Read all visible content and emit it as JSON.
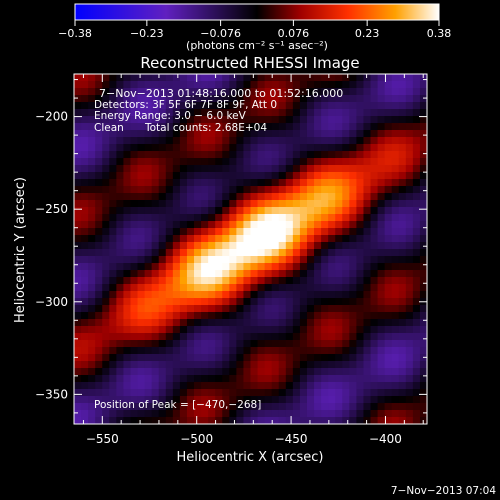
{
  "chart_data": {
    "type": "heatmap",
    "title": "Reconstructed RHESSI Image",
    "xlabel": "Heliocentric X (arcsec)",
    "ylabel": "Heliocentric Y (arcsec)",
    "xlim": [
      -565,
      -378
    ],
    "ylim": [
      -366,
      -177
    ],
    "x_ticks": [
      -550,
      -500,
      -450,
      -400
    ],
    "y_ticks": [
      -350,
      -300,
      -250,
      -200
    ],
    "x_tick_labels": [
      "−550",
      "−500",
      "−450",
      "−400"
    ],
    "y_tick_labels": [
      "−350",
      "−300",
      "−250",
      "−200"
    ],
    "colorbar": {
      "min": -0.38,
      "max": 0.38,
      "ticks": [
        -0.38,
        -0.23,
        -0.076,
        0.076,
        0.23,
        0.38
      ],
      "tick_labels": [
        "−0.38",
        "−0.23",
        "−0.076",
        "0.076",
        "0.23",
        "0.38"
      ],
      "label": "(photons cm⁻² s⁻¹ asec⁻²)"
    },
    "annotations": {
      "time_range": "7−Nov−2013 01:48:16.000 to 01:52:16.000",
      "detectors": "Detectors: 3F 5F 6F 7F 8F 9F, Att 0",
      "energy": "Energy Range: 3.0 − 6.0 keV",
      "method": "Clean",
      "counts": "Total counts: 2.68E+04",
      "peak": "Position of Peak = [−470,−268]"
    },
    "peak": {
      "x": -470,
      "y": -268,
      "value": 0.38
    },
    "footer_timestamp": "7−Nov−2013 07:04"
  }
}
